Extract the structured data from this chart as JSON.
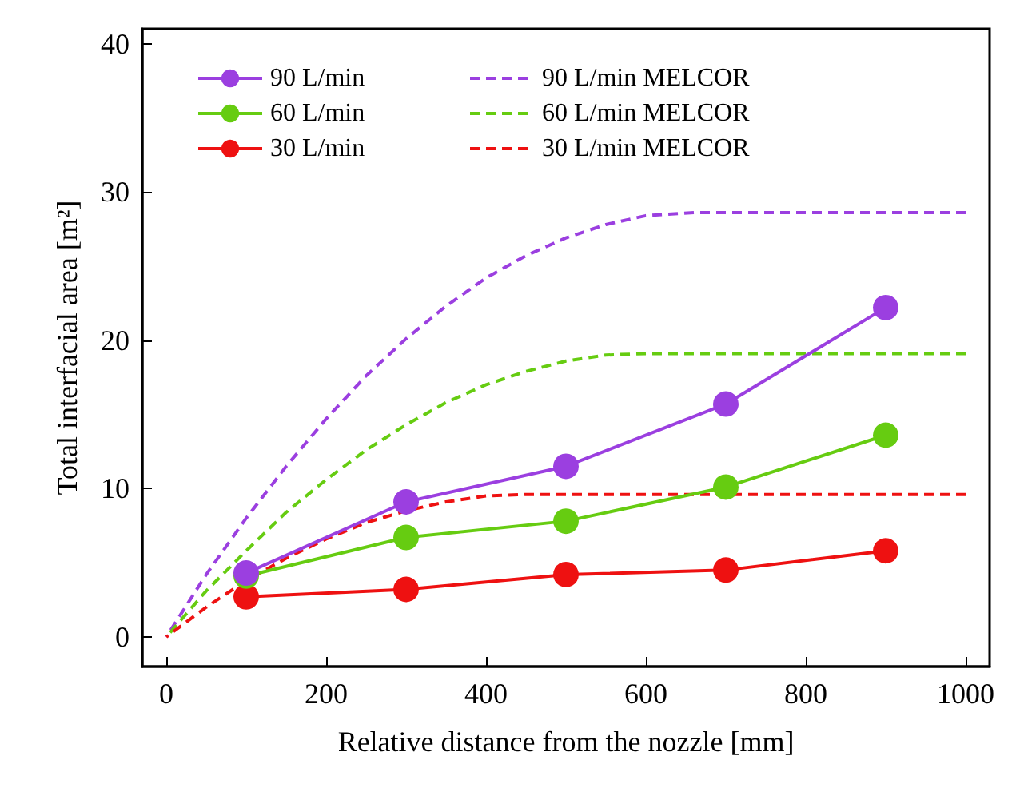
{
  "chart_data": {
    "type": "line",
    "xlabel": "Relative distance from the nozzle [mm]",
    "ylabel": "Total interfacial area [m²]",
    "xlim": [
      -30,
      1030
    ],
    "ylim": [
      -2,
      41
    ],
    "xticks": [
      0,
      200,
      400,
      600,
      800,
      1000
    ],
    "yticks": [
      0,
      10,
      20,
      30,
      40
    ],
    "grid": false,
    "legend": "top left",
    "series": [
      {
        "name": "90 L/min",
        "color": "#9b3fe0",
        "marker": "circle",
        "line_style": "solid",
        "x": [
          100,
          300,
          500,
          700,
          900
        ],
        "values": [
          4.3,
          9.1,
          11.5,
          15.7,
          22.2
        ]
      },
      {
        "name": "60 L/min",
        "color": "#66cc11",
        "marker": "circle",
        "line_style": "solid",
        "x": [
          100,
          300,
          500,
          700,
          900
        ],
        "values": [
          4.1,
          6.7,
          7.8,
          10.1,
          13.6
        ]
      },
      {
        "name": "30 L/min",
        "color": "#ee1111",
        "marker": "circle",
        "line_style": "solid",
        "x": [
          100,
          300,
          500,
          700,
          900
        ],
        "values": [
          2.7,
          3.2,
          4.2,
          4.5,
          5.8
        ]
      },
      {
        "name": "90 L/min MELCOR",
        "color": "#9b3fe0",
        "marker": "none",
        "line_style": "dashed",
        "x": [
          0,
          50,
          100,
          150,
          200,
          250,
          300,
          350,
          400,
          450,
          500,
          550,
          600,
          660,
          1000
        ],
        "values": [
          0,
          4.2,
          8.0,
          11.5,
          14.7,
          17.6,
          20.1,
          22.3,
          24.2,
          25.7,
          26.9,
          27.8,
          28.4,
          28.6,
          28.6
        ]
      },
      {
        "name": "60 L/min MELCOR",
        "color": "#66cc11",
        "marker": "none",
        "line_style": "dashed",
        "x": [
          0,
          50,
          100,
          150,
          200,
          250,
          300,
          350,
          400,
          450,
          500,
          550,
          600,
          1000
        ],
        "values": [
          0,
          3.1,
          5.8,
          8.4,
          10.6,
          12.6,
          14.3,
          15.8,
          17.0,
          17.9,
          18.6,
          19.0,
          19.1,
          19.1
        ]
      },
      {
        "name": "30 L/min MELCOR",
        "color": "#ee1111",
        "marker": "none",
        "line_style": "dashed",
        "x": [
          0,
          50,
          100,
          150,
          200,
          250,
          300,
          350,
          400,
          450,
          1000
        ],
        "values": [
          0,
          2.0,
          3.8,
          5.3,
          6.6,
          7.7,
          8.5,
          9.1,
          9.5,
          9.6,
          9.6
        ]
      }
    ]
  }
}
